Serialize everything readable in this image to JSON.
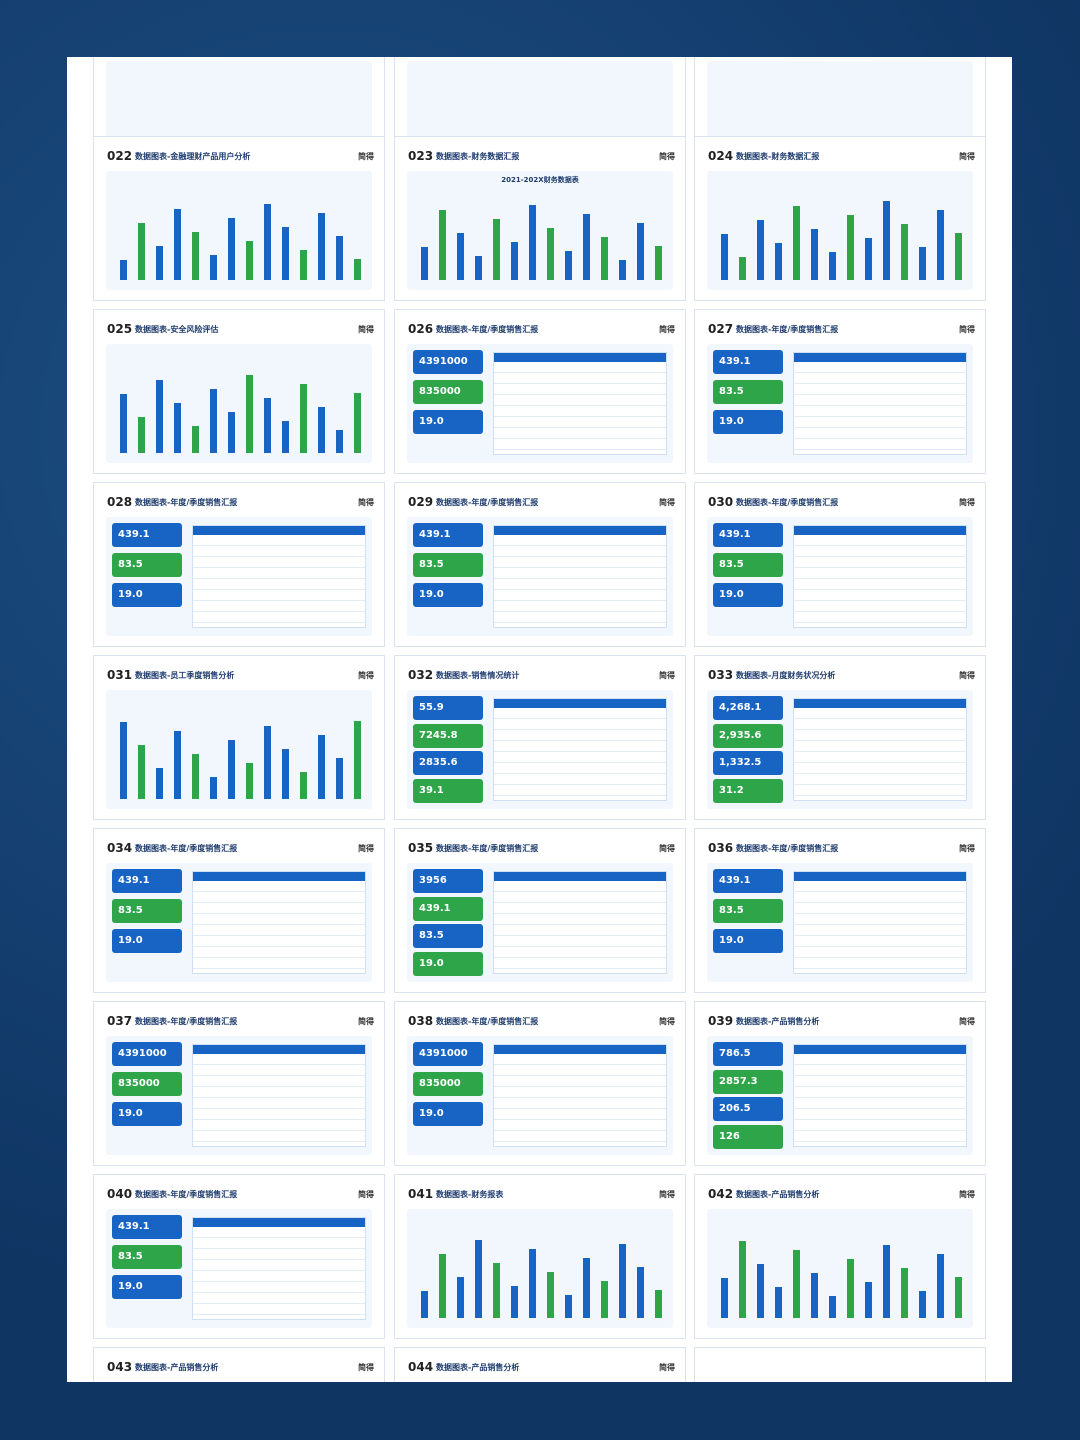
{
  "cards": [
    {
      "number": "022",
      "title": "数据图表-金融理财产品用户分析",
      "brand": "简得",
      "highlights": []
    },
    {
      "number": "023",
      "title": "数据图表-财务数据汇报",
      "brand": "简得",
      "subtitle": "2021-202X财务数据表",
      "highlights": []
    },
    {
      "number": "024",
      "title": "数据图表-财务数据汇报",
      "brand": "简得",
      "highlights": []
    },
    {
      "number": "025",
      "title": "数据图表-安全风险评估",
      "brand": "简得",
      "highlights": []
    },
    {
      "number": "026",
      "title": "数据图表-年度/季度销售汇报",
      "brand": "简得",
      "highlights": [
        "4391000",
        "835000",
        "19.0"
      ]
    },
    {
      "number": "027",
      "title": "数据图表-年度/季度销售汇报",
      "brand": "简得",
      "highlights": [
        "439.1",
        "83.5",
        "19.0"
      ]
    },
    {
      "number": "028",
      "title": "数据图表-年度/季度销售汇报",
      "brand": "简得",
      "highlights": [
        "439.1",
        "83.5",
        "19.0"
      ]
    },
    {
      "number": "029",
      "title": "数据图表-年度/季度销售汇报",
      "brand": "简得",
      "highlights": [
        "439.1",
        "83.5",
        "19.0"
      ]
    },
    {
      "number": "030",
      "title": "数据图表-年度/季度销售汇报",
      "brand": "简得",
      "highlights": [
        "439.1",
        "83.5",
        "19.0"
      ]
    },
    {
      "number": "031",
      "title": "数据图表-员工季度销售分析",
      "brand": "简得",
      "highlights": []
    },
    {
      "number": "032",
      "title": "数据图表-销售情况统计",
      "brand": "简得",
      "highlights": [
        "55.9",
        "7245.8",
        "2835.6",
        "39.1"
      ]
    },
    {
      "number": "033",
      "title": "数据图表-月度财务状况分析",
      "brand": "简得",
      "highlights": [
        "4,268.1",
        "2,935.6",
        "1,332.5",
        "31.2"
      ]
    },
    {
      "number": "034",
      "title": "数据图表-年度/季度销售汇报",
      "brand": "简得",
      "highlights": [
        "439.1",
        "83.5",
        "19.0"
      ]
    },
    {
      "number": "035",
      "title": "数据图表-年度/季度销售汇报",
      "brand": "简得",
      "highlights": [
        "3956",
        "439.1",
        "83.5",
        "19.0"
      ]
    },
    {
      "number": "036",
      "title": "数据图表-年度/季度销售汇报",
      "brand": "简得",
      "highlights": [
        "439.1",
        "83.5",
        "19.0"
      ]
    },
    {
      "number": "037",
      "title": "数据图表-年度/季度销售汇报",
      "brand": "简得",
      "highlights": [
        "4391000",
        "835000",
        "19.0"
      ]
    },
    {
      "number": "038",
      "title": "数据图表-年度/季度销售汇报",
      "brand": "简得",
      "highlights": [
        "4391000",
        "835000",
        "19.0"
      ]
    },
    {
      "number": "039",
      "title": "数据图表-产品销售分析",
      "brand": "简得",
      "highlights": [
        "786.5",
        "2857.3",
        "206.5",
        "126"
      ]
    },
    {
      "number": "040",
      "title": "数据图表-年度/季度销售汇报",
      "brand": "简得",
      "highlights": [
        "439.1",
        "83.5",
        "19.0"
      ]
    },
    {
      "number": "041",
      "title": "数据图表-财务报表",
      "brand": "简得",
      "highlights": []
    },
    {
      "number": "042",
      "title": "数据图表-产品销售分析",
      "brand": "简得",
      "highlights": []
    },
    {
      "number": "043",
      "title": "数据图表-产品销售分析",
      "brand": "简得",
      "highlights": []
    },
    {
      "number": "044",
      "title": "数据图表-产品销售分析",
      "brand": "简得",
      "highlights": []
    }
  ]
}
